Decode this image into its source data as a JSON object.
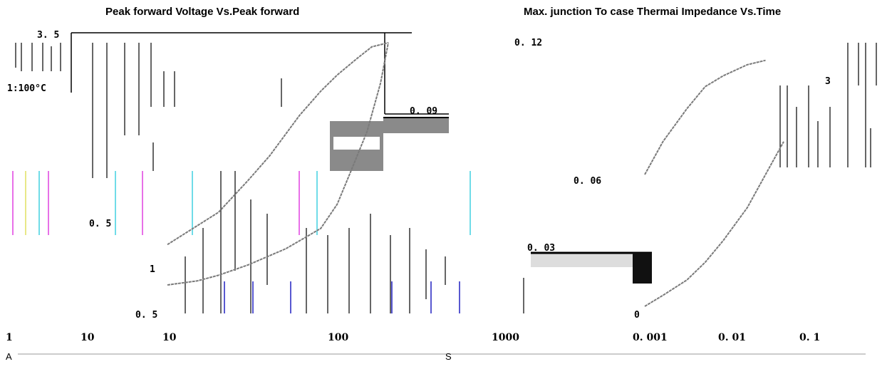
{
  "chart_data": [
    {
      "type": "line",
      "title": "Peak forward Voltage Vs.Peak forward",
      "xlabel": "",
      "ylabel": "",
      "x_ticks": [
        "1",
        "10",
        "10",
        "100",
        "1000"
      ],
      "y_ticks": [
        "3. 5",
        "0. 5",
        "1",
        "0. 5"
      ],
      "annotation": "1:100°C",
      "series": [
        {
          "name": "",
          "x": [
            10,
            15,
            20,
            30,
            50,
            80,
            100,
            120,
            150,
            180,
            200
          ],
          "y": [
            0.5,
            0.55,
            0.62,
            0.75,
            0.95,
            1.2,
            1.5,
            1.9,
            2.4,
            3.0,
            3.5
          ]
        },
        {
          "name": "",
          "x": [
            10,
            20,
            30,
            40,
            60,
            80,
            100,
            130,
            160,
            200
          ],
          "y": [
            1.0,
            1.4,
            1.8,
            2.1,
            2.6,
            2.9,
            3.1,
            3.3,
            3.45,
            3.5
          ]
        }
      ]
    },
    {
      "type": "line",
      "title": "Max. junction To case Thermai Impedance Vs.Time",
      "xlabel": "",
      "ylabel": "",
      "x_ticks": [
        "0. 001",
        "0. 01",
        "0. 1"
      ],
      "y_ticks": [
        "0. 12",
        "0. 09",
        "0. 06",
        "0. 03",
        "0"
      ],
      "series": [
        {
          "name": "",
          "x": [
            0.001,
            0.002,
            0.005,
            0.01,
            0.02,
            0.05,
            0.1,
            0.2
          ],
          "y": [
            0.0,
            0.005,
            0.012,
            0.02,
            0.03,
            0.045,
            0.06,
            0.075
          ]
        },
        {
          "name": "",
          "x": [
            0.001,
            0.002,
            0.005,
            0.01,
            0.02,
            0.05,
            0.1
          ],
          "y": [
            0.06,
            0.075,
            0.09,
            0.1,
            0.105,
            0.11,
            0.112
          ]
        }
      ]
    }
  ],
  "labels": {
    "annotation_left": "1:100°C",
    "box_value": "0. 09",
    "axis_unit_a": "A",
    "axis_unit_s": "S",
    "extra_tick_a": "1",
    "extra_tick_b": "10",
    "extra_tick_c": "3"
  },
  "colors": {
    "curve": "#7a7a7a",
    "accent_blue": "#2020c0",
    "accent_pink": "#e040e0",
    "accent_cyan": "#40d0e0",
    "accent_yellow": "#e0e060",
    "box_dark": "#333333",
    "box_grey": "#8a8a8a"
  }
}
